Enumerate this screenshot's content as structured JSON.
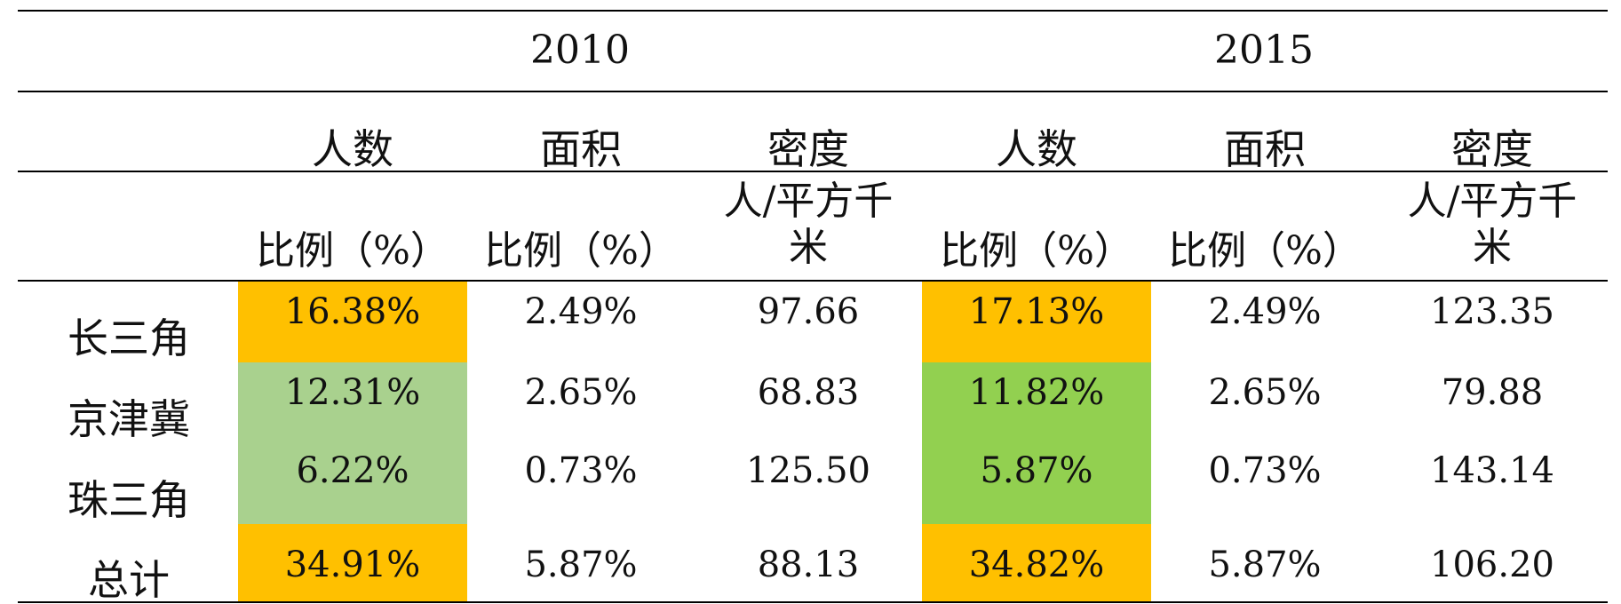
{
  "colors": {
    "orange": "#FFC000",
    "light_green": "#A9D18E",
    "green": "#92D050"
  },
  "table": {
    "years": [
      "2010",
      "2015"
    ],
    "metrics": [
      "人数",
      "面积",
      "密度",
      "人数",
      "面积",
      "密度"
    ],
    "units": [
      [
        "比例（%）"
      ],
      [
        "比例（%）"
      ],
      [
        "人/平方千",
        "米"
      ],
      [
        "比例（%）"
      ],
      [
        "比例（%）"
      ],
      [
        "人/平方千",
        "米"
      ]
    ],
    "rows": [
      {
        "label": "长三角",
        "values": [
          "16.38%",
          "2.49%",
          "97.66",
          "17.13%",
          "2.49%",
          "123.35"
        ]
      },
      {
        "label": "京津冀",
        "values": [
          "12.31%",
          "2.65%",
          "68.83",
          "11.82%",
          "2.65%",
          "79.88"
        ]
      },
      {
        "label": "珠三角",
        "values": [
          "6.22%",
          "0.73%",
          "125.50",
          "5.87%",
          "0.73%",
          "143.14"
        ]
      },
      {
        "label": "总计",
        "values": [
          "34.91%",
          "5.87%",
          "88.13",
          "34.82%",
          "5.87%",
          "106.20"
        ]
      }
    ]
  }
}
